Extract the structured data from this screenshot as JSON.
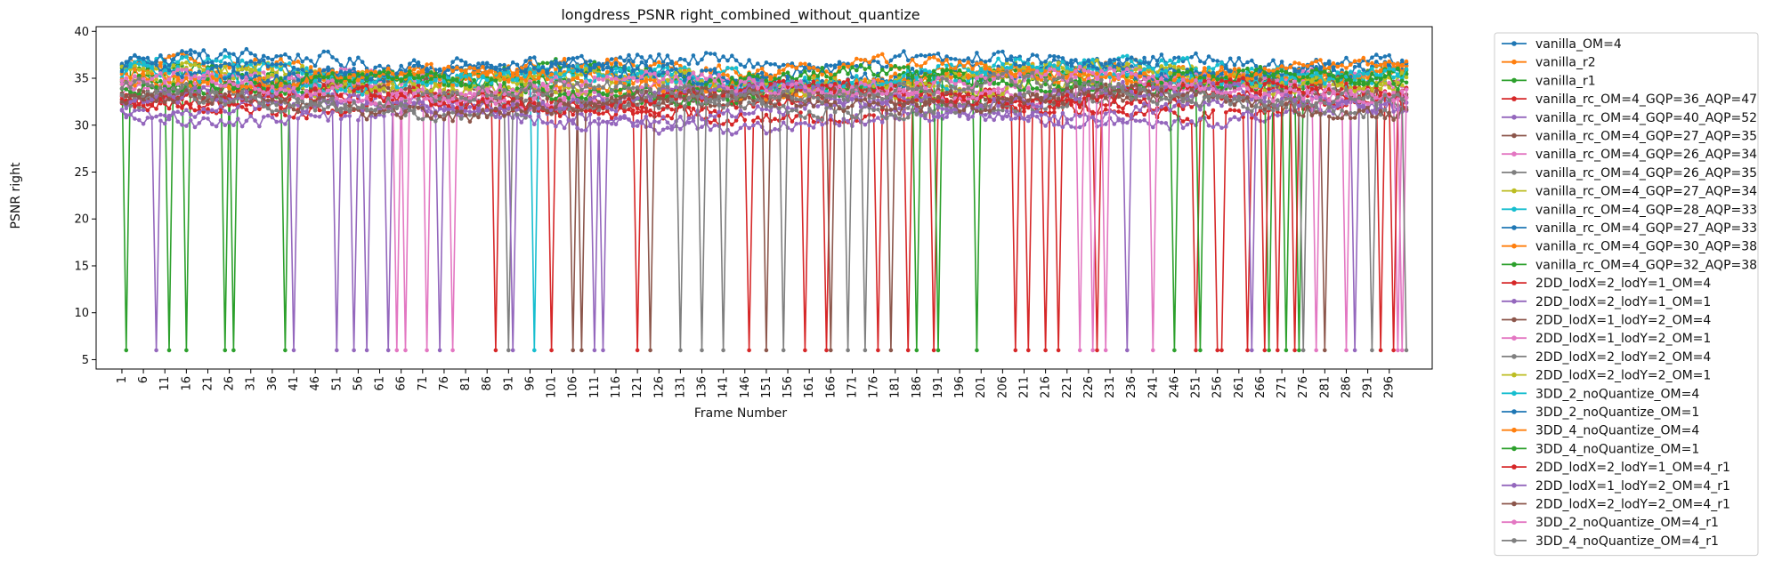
{
  "chart_data": {
    "type": "line",
    "title": "longdress_PSNR right_combined_without_quantize",
    "xlabel": "Frame Number",
    "ylabel": "PSNR right",
    "xlim": [
      -5,
      306
    ],
    "ylim": [
      4.0,
      40.5
    ],
    "yticks": [
      5,
      10,
      15,
      20,
      25,
      30,
      35,
      40
    ],
    "xticks": [
      1,
      6,
      11,
      16,
      21,
      26,
      31,
      36,
      41,
      46,
      51,
      56,
      61,
      66,
      71,
      76,
      81,
      86,
      91,
      96,
      101,
      106,
      111,
      116,
      121,
      126,
      131,
      136,
      141,
      146,
      151,
      156,
      161,
      166,
      171,
      176,
      181,
      186,
      191,
      196,
      201,
      206,
      211,
      216,
      221,
      226,
      231,
      236,
      241,
      246,
      251,
      256,
      261,
      266,
      271,
      276,
      281,
      286,
      291,
      296
    ],
    "frames": [
      1,
      300
    ],
    "legend_position": "outside-right",
    "grid": false,
    "series": [
      {
        "name": "vanilla_OM=4",
        "color": "#1f77b4",
        "mean": 36.2,
        "drops": []
      },
      {
        "name": "vanilla_r2",
        "color": "#ff7f0e",
        "mean": 35.6,
        "drops": []
      },
      {
        "name": "vanilla_r1",
        "color": "#2ca02c",
        "mean": 35.0,
        "drops": [
          2,
          12,
          16,
          25,
          27,
          39
        ]
      },
      {
        "name": "vanilla_rc_OM=4_GQP=36_AQP=47",
        "color": "#d62728",
        "mean": 32.0,
        "drops": [
          88,
          101,
          121,
          147,
          160,
          165,
          177,
          184,
          190,
          212,
          219,
          228,
          251,
          256,
          257,
          263
        ]
      },
      {
        "name": "vanilla_rc_OM=4_GQP=40_AQP=52",
        "color": "#9467bd",
        "mean": 30.8,
        "drops": [
          9,
          41,
          51,
          55,
          58,
          63,
          111,
          113
        ]
      },
      {
        "name": "vanilla_rc_OM=4_GQP=27_AQP=35",
        "color": "#8c564b",
        "mean": 33.5,
        "drops": [
          106,
          108,
          124,
          151,
          166,
          180
        ]
      },
      {
        "name": "vanilla_rc_OM=4_GQP=26_AQP=34",
        "color": "#e377c2",
        "mean": 34.0,
        "drops": [
          65,
          67,
          72
        ]
      },
      {
        "name": "vanilla_rc_OM=4_GQP=26_AQP=35",
        "color": "#7f7f7f",
        "mean": 33.0,
        "drops": [
          91,
          141,
          155,
          170,
          174
        ]
      },
      {
        "name": "vanilla_rc_OM=4_GQP=27_AQP=34",
        "color": "#bcbd22",
        "mean": 34.5,
        "drops": []
      },
      {
        "name": "vanilla_rc_OM=4_GQP=28_AQP=33",
        "color": "#17becf",
        "mean": 35.3,
        "drops": [
          97
        ]
      },
      {
        "name": "vanilla_rc_OM=4_GQP=27_AQP=33",
        "color": "#1f77b4",
        "mean": 35.8,
        "drops": []
      },
      {
        "name": "vanilla_rc_OM=4_GQP=30_AQP=38",
        "color": "#ff7f0e",
        "mean": 34.8,
        "drops": []
      },
      {
        "name": "vanilla_rc_OM=4_GQP=32_AQP=38",
        "color": "#2ca02c",
        "mean": 34.2,
        "drops": [
          186,
          191,
          200,
          246,
          252,
          268,
          272,
          275
        ]
      },
      {
        "name": "2DD_lodX=2_lodY=1_OM=4",
        "color": "#d62728",
        "mean": 32.6,
        "drops": [
          209,
          216,
          267,
          270,
          274,
          294
        ]
      },
      {
        "name": "2DD_lodX=2_lodY=1_OM=1",
        "color": "#9467bd",
        "mean": 31.5,
        "drops": [
          75,
          92,
          235,
          264,
          288
        ]
      },
      {
        "name": "2DD_lodX=1_lodY=2_OM=4",
        "color": "#8c564b",
        "mean": 33.2,
        "drops": []
      },
      {
        "name": "2DD_lodX=1_lodY=2_OM=1",
        "color": "#e377c2",
        "mean": 33.8,
        "drops": [
          78,
          224,
          227,
          230,
          241,
          279,
          286,
          298
        ]
      },
      {
        "name": "2DD_lodX=2_lodY=2_OM=4",
        "color": "#7f7f7f",
        "mean": 32.2,
        "drops": [
          131,
          136,
          276,
          292
        ]
      },
      {
        "name": "2DD_lodX=2_lodY=2_OM=1",
        "color": "#bcbd22",
        "mean": 34.9,
        "drops": []
      },
      {
        "name": "3DD_2_noQuantize_OM=4",
        "color": "#17becf",
        "mean": 35.1,
        "drops": []
      },
      {
        "name": "3DD_2_noQuantize_OM=1",
        "color": "#1f77b4",
        "mean": 36.0,
        "drops": []
      },
      {
        "name": "3DD_4_noQuantize_OM=4",
        "color": "#ff7f0e",
        "mean": 35.4,
        "drops": []
      },
      {
        "name": "3DD_4_noQuantize_OM=1",
        "color": "#2ca02c",
        "mean": 34.6,
        "drops": []
      },
      {
        "name": "2DD_lodX=2_lodY=1_OM=4_r1",
        "color": "#d62728",
        "mean": 33.0,
        "drops": [
          297
        ]
      },
      {
        "name": "2DD_lodX=1_lodY=2_OM=4_r1",
        "color": "#9467bd",
        "mean": 32.8,
        "drops": []
      },
      {
        "name": "2DD_lodX=2_lodY=2_OM=4_r1",
        "color": "#8c564b",
        "mean": 32.4,
        "drops": [
          281
        ]
      },
      {
        "name": "3DD_2_noQuantize_OM=4_r1",
        "color": "#e377c2",
        "mean": 34.3,
        "drops": [
          299
        ]
      },
      {
        "name": "3DD_4_noQuantize_OM=4_r1",
        "color": "#7f7f7f",
        "mean": 33.4,
        "drops": [
          300
        ]
      }
    ],
    "drop_value": 6.0
  }
}
